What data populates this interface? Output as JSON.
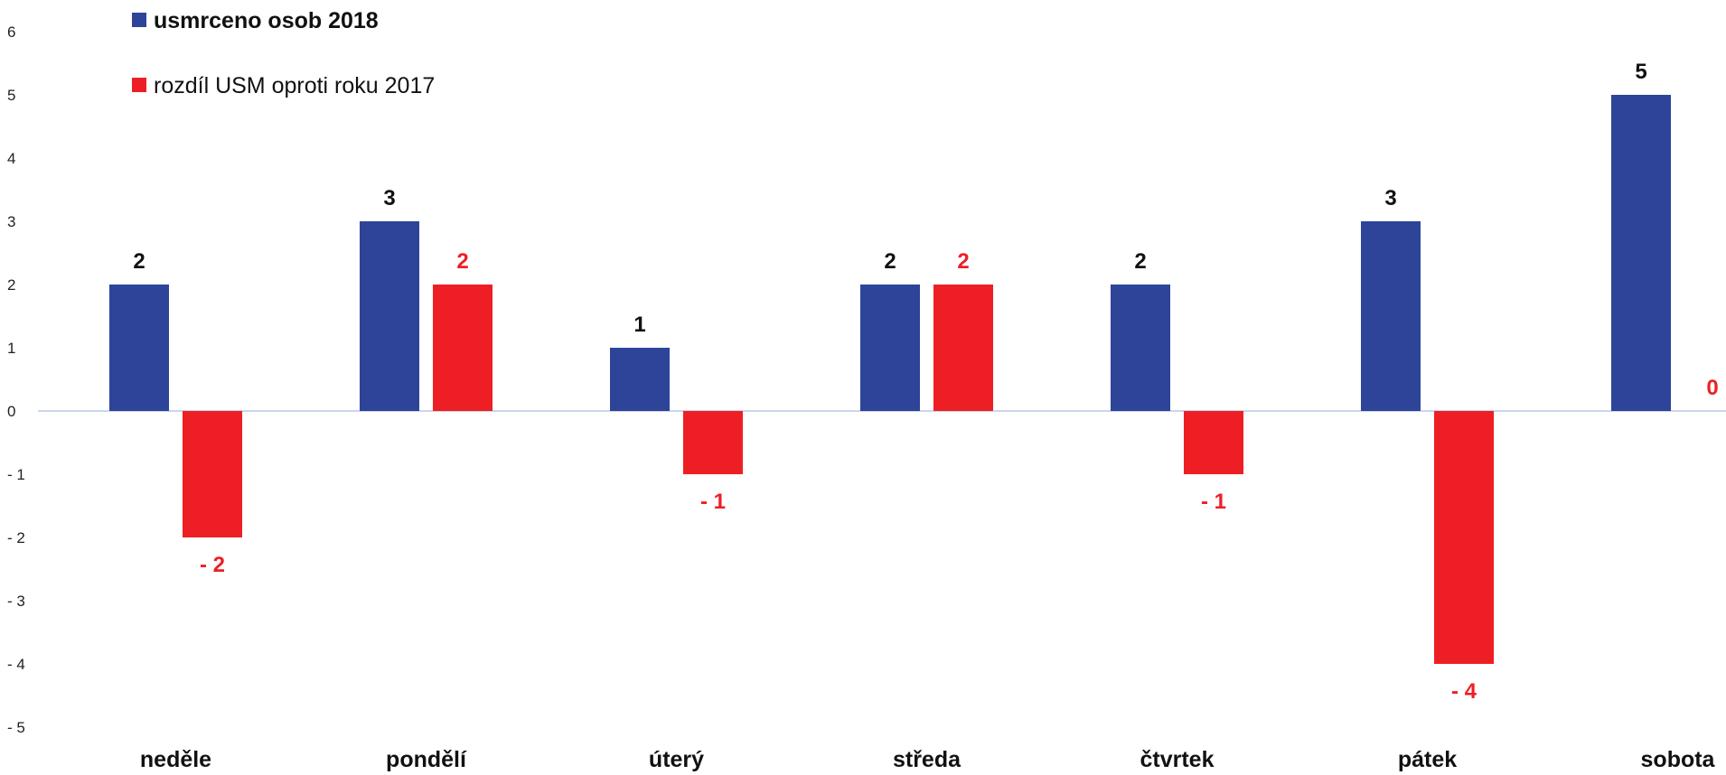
{
  "chart_data": {
    "type": "bar",
    "categories": [
      "neděle",
      "pondělí",
      "úterý",
      "středa",
      "čtvrtek",
      "pátek",
      "sobota"
    ],
    "series": [
      {
        "name": "usmrceno osob 2018",
        "values": [
          2,
          3,
          1,
          2,
          2,
          3,
          5
        ],
        "color": "#2d4499",
        "labels": [
          "2",
          "3",
          "1",
          "2",
          "2",
          "3",
          "5"
        ]
      },
      {
        "name": "rozdíl USM oproti roku 2017",
        "values": [
          -2,
          2,
          -1,
          2,
          -1,
          -4,
          0
        ],
        "color": "#ee1f24",
        "labels": [
          "- 2",
          "2",
          "- 1",
          "2",
          "- 1",
          "- 4",
          "0"
        ]
      }
    ],
    "ylim": [
      -5,
      6
    ],
    "yticks": [
      "6",
      "5",
      "4",
      "3",
      "2",
      "1",
      "0",
      "- 1",
      "- 2",
      "- 3",
      "- 4",
      "- 5"
    ],
    "legend_position": "top-left",
    "grid": false,
    "zero_line_color": "#b8cce4",
    "title": "",
    "xlabel": "",
    "ylabel": ""
  }
}
